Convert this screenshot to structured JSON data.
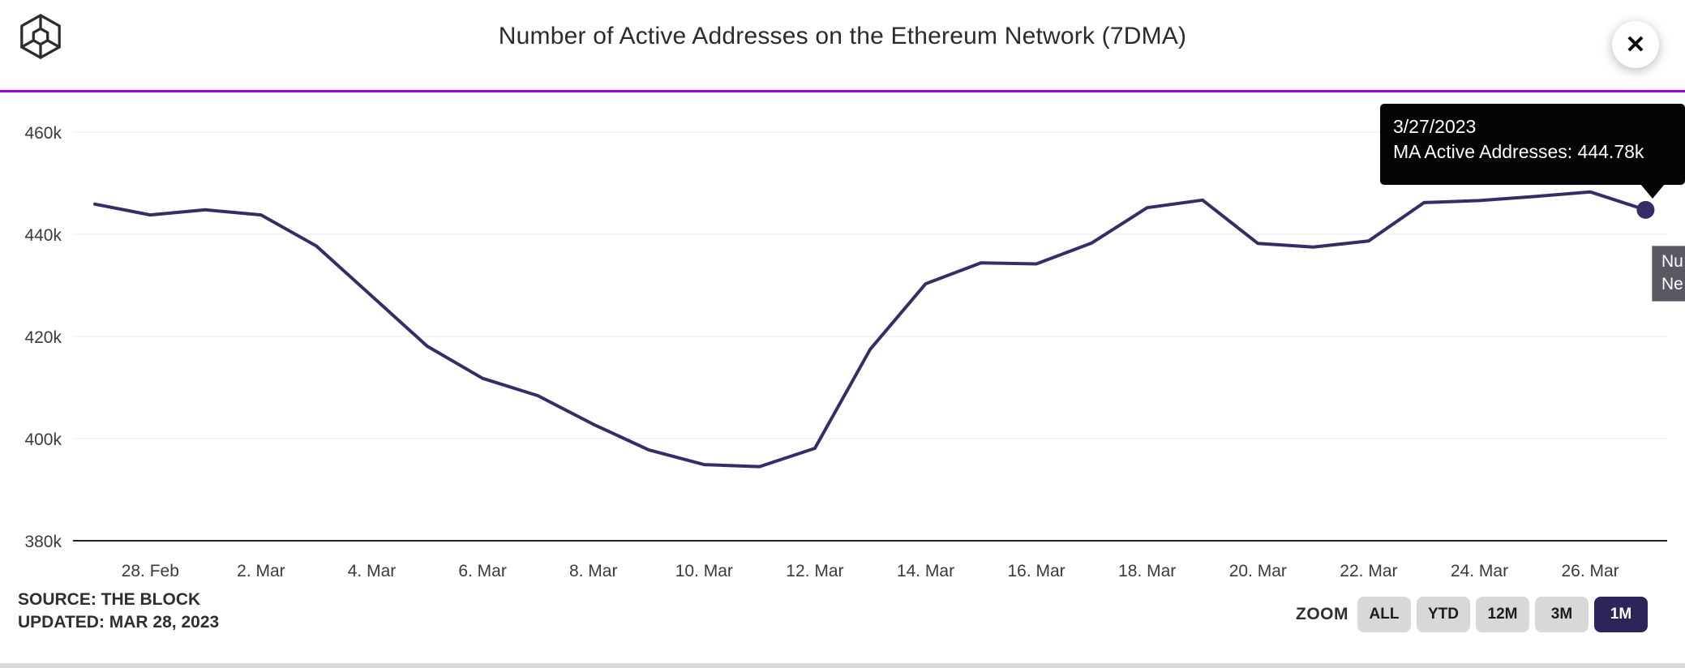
{
  "header": {
    "title": "Number of Active Addresses on the Ethereum Network (7DMA)",
    "close_glyph": "✕"
  },
  "tooltip": {
    "date": "3/27/2023",
    "text": "MA Active Addresses: 444.78k"
  },
  "clipped_tooltip": {
    "visible_lines": [
      "Nu",
      "Ne"
    ]
  },
  "footer": {
    "source": "SOURCE: THE BLOCK",
    "updated": "UPDATED: MAR 28, 2023",
    "zoom_label": "ZOOM",
    "zoom_buttons": [
      {
        "label": "ALL",
        "active": false
      },
      {
        "label": "YTD",
        "active": false
      },
      {
        "label": "12M",
        "active": false
      },
      {
        "label": "3M",
        "active": false
      },
      {
        "label": "1M",
        "active": true
      }
    ]
  },
  "colors": {
    "accent_rule": "#a100e8",
    "series_line": "#352d66",
    "grid_line": "#ebebeb",
    "axis_line": "#1f1f1f",
    "tick_text": "#3a3a3a",
    "tooltip_bg": "#050505",
    "clipped_tooltip_bg": "#5a5963",
    "active_button_bg": "#2b2559"
  },
  "chart_data": {
    "type": "line",
    "title": "Number of Active Addresses on the Ethereum Network (7DMA)",
    "series": [
      {
        "name": "MA Active Addresses",
        "unit": "k",
        "x": [
          "2/27/2023",
          "2/28/2023",
          "3/1/2023",
          "3/2/2023",
          "3/3/2023",
          "3/4/2023",
          "3/5/2023",
          "3/6/2023",
          "3/7/2023",
          "3/8/2023",
          "3/9/2023",
          "3/10/2023",
          "3/11/2023",
          "3/12/2023",
          "3/13/2023",
          "3/14/2023",
          "3/15/2023",
          "3/16/2023",
          "3/17/2023",
          "3/18/2023",
          "3/19/2023",
          "3/20/2023",
          "3/21/2023",
          "3/22/2023",
          "3/23/2023",
          "3/24/2023",
          "3/25/2023",
          "3/26/2023",
          "3/27/2023"
        ],
        "values_k": [
          445.9,
          443.8,
          444.8,
          443.8,
          437.7,
          427.9,
          418.1,
          411.8,
          408.4,
          402.8,
          397.8,
          394.9,
          394.5,
          398.1,
          417.5,
          430.3,
          434.4,
          434.2,
          438.3,
          445.2,
          446.7,
          438.2,
          437.5,
          438.7,
          446.2,
          446.6,
          447.4,
          448.3,
          444.78
        ]
      }
    ],
    "highlight_point": {
      "date": "3/27/2023",
      "value_k": 444.78
    },
    "y_ticks": [
      {
        "label": "460k",
        "value_k": 460
      },
      {
        "label": "440k",
        "value_k": 440
      },
      {
        "label": "420k",
        "value_k": 420
      },
      {
        "label": "400k",
        "value_k": 400
      },
      {
        "label": "380k",
        "value_k": 380
      }
    ],
    "x_ticks": [
      {
        "label": "28. Feb",
        "index": 1
      },
      {
        "label": "2. Mar",
        "index": 3
      },
      {
        "label": "4. Mar",
        "index": 5
      },
      {
        "label": "6. Mar",
        "index": 7
      },
      {
        "label": "8. Mar",
        "index": 9
      },
      {
        "label": "10. Mar",
        "index": 11
      },
      {
        "label": "12. Mar",
        "index": 13
      },
      {
        "label": "14. Mar",
        "index": 15
      },
      {
        "label": "16. Mar",
        "index": 17
      },
      {
        "label": "18. Mar",
        "index": 19
      },
      {
        "label": "20. Mar",
        "index": 21
      },
      {
        "label": "22. Mar",
        "index": 23
      },
      {
        "label": "24. Mar",
        "index": 25
      },
      {
        "label": "26. Mar",
        "index": 27
      }
    ],
    "ylim_k": [
      380,
      460
    ],
    "grid": "horizontal-only",
    "legend": "none"
  }
}
